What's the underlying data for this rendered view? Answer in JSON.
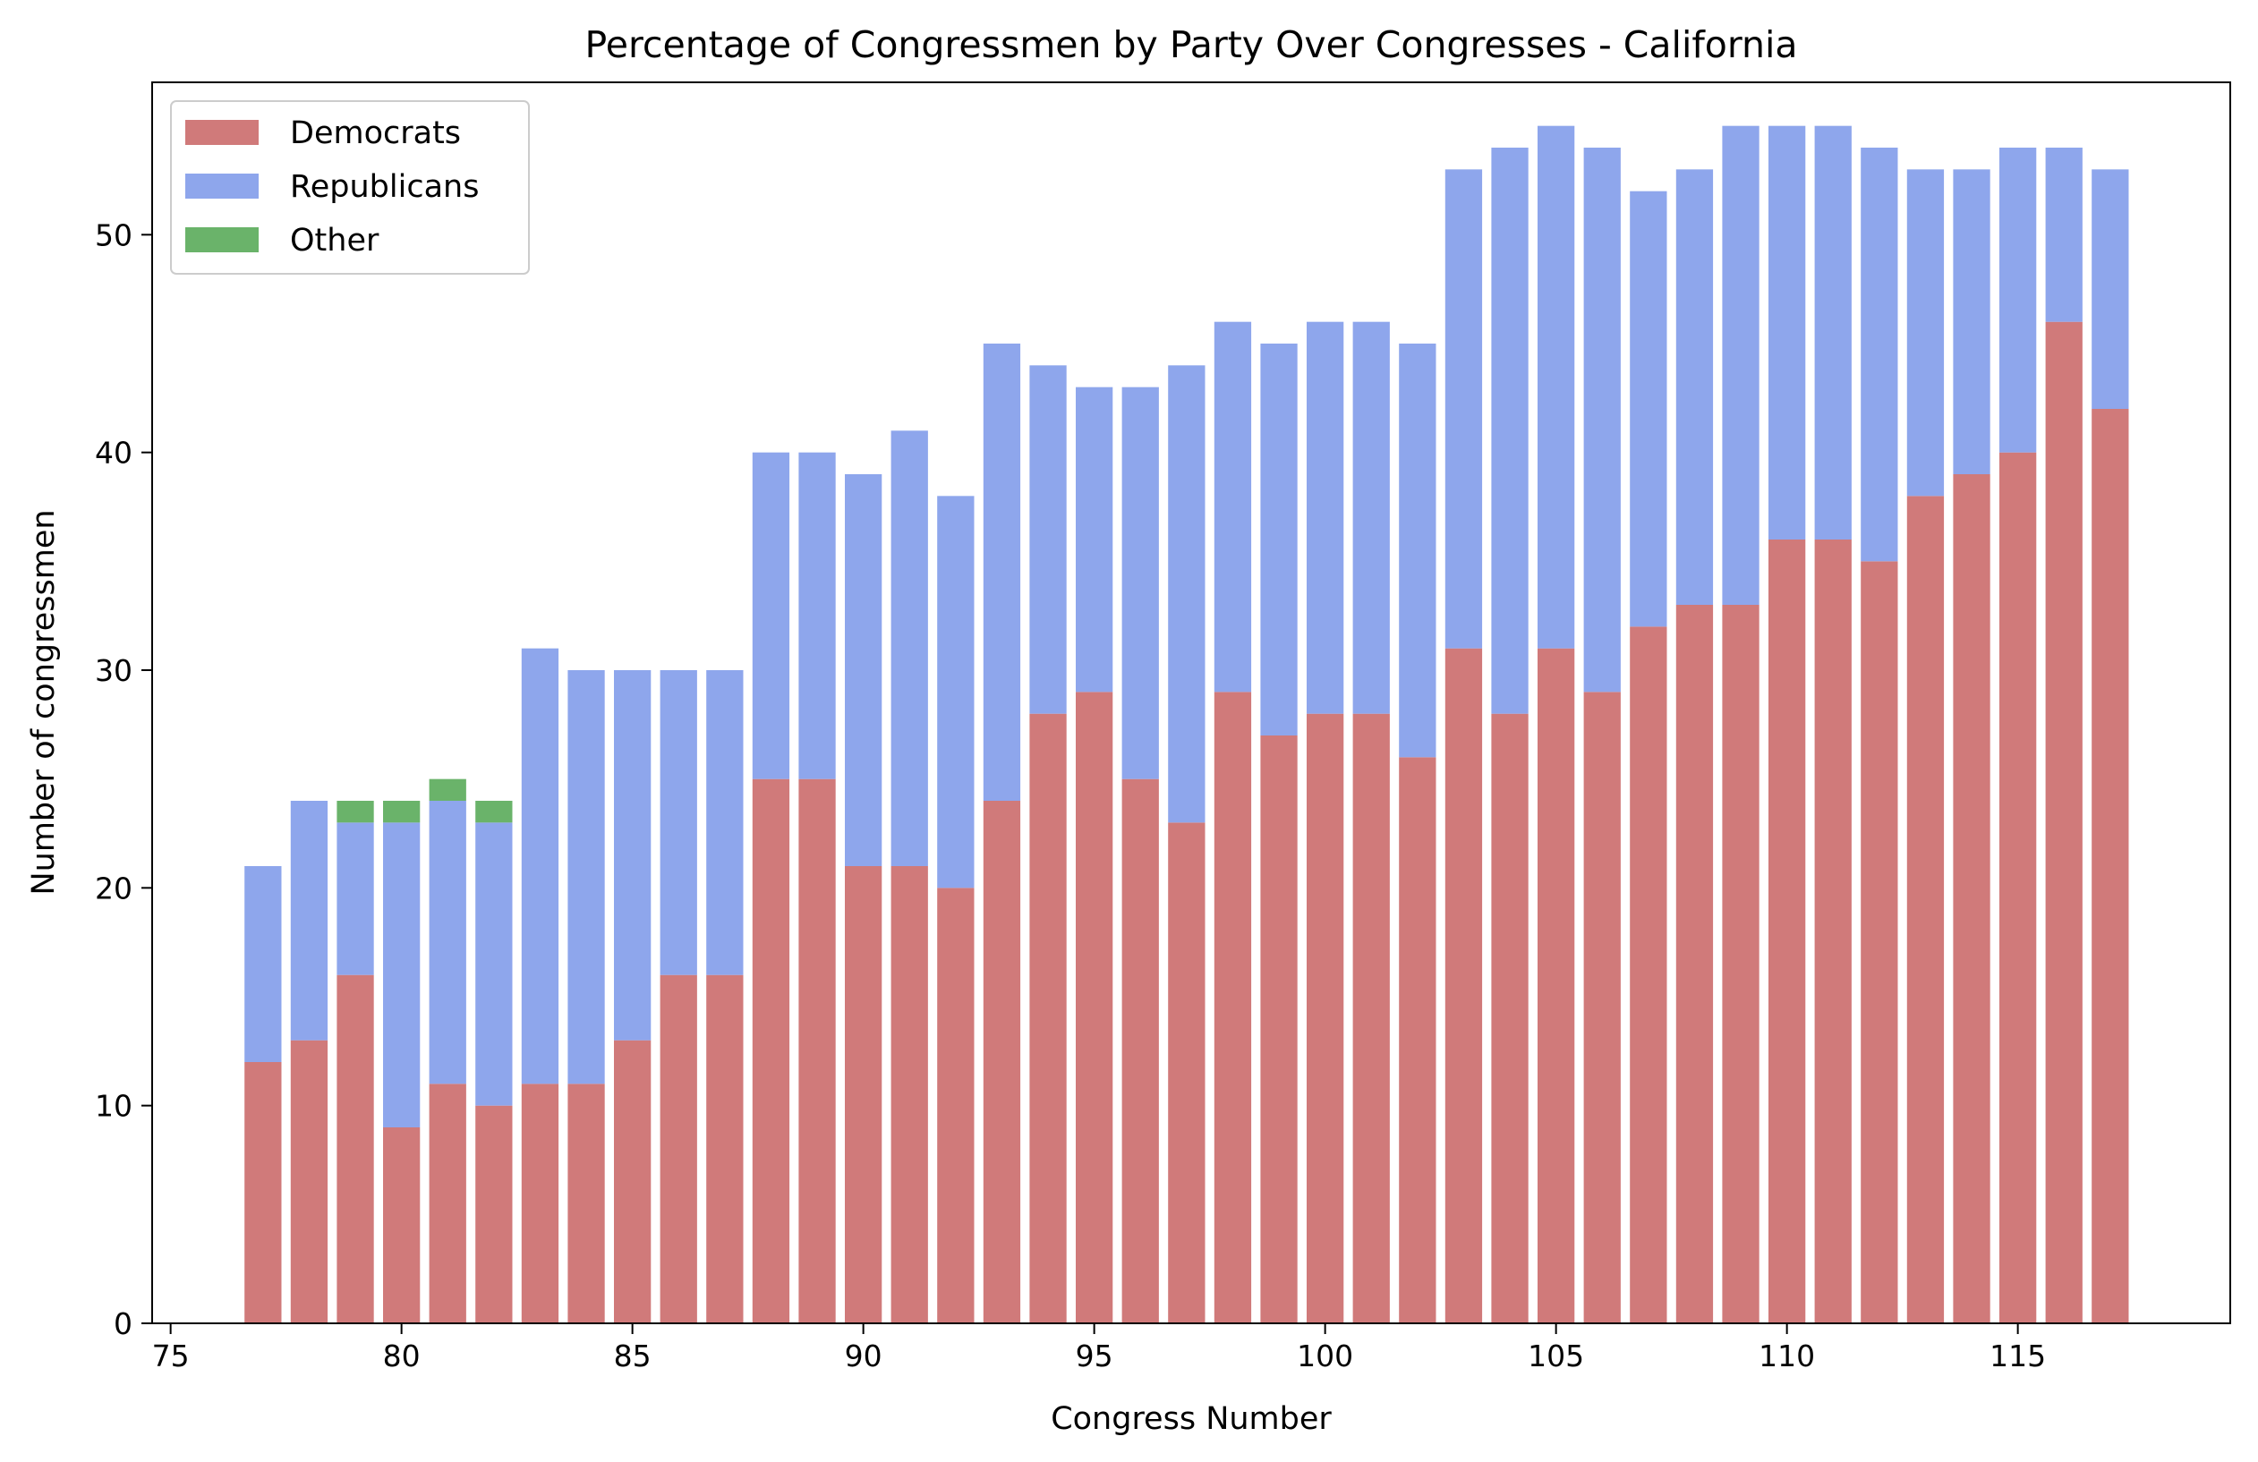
{
  "chart_data": {
    "type": "bar",
    "stacked": true,
    "title": "Percentage of Congressmen by Party Over Congresses - California",
    "xlabel": "Congress Number",
    "ylabel": "Number of congressmen",
    "xlim": [
      74.6,
      119.6
    ],
    "ylim": [
      0,
      57
    ],
    "xticks": [
      75,
      80,
      85,
      90,
      95,
      100,
      105,
      110,
      115
    ],
    "yticks": [
      0,
      10,
      20,
      30,
      40,
      50
    ],
    "grid": false,
    "legend": "top-left",
    "x": [
      77,
      78,
      79,
      80,
      81,
      82,
      83,
      84,
      85,
      86,
      87,
      88,
      89,
      90,
      91,
      92,
      93,
      94,
      95,
      96,
      97,
      98,
      99,
      100,
      101,
      102,
      103,
      104,
      105,
      106,
      107,
      108,
      109,
      110,
      111,
      112,
      113,
      114,
      115,
      116,
      117
    ],
    "series": [
      {
        "name": "Democrats",
        "color": "#d07a7a",
        "values": [
          12,
          13,
          16,
          9,
          11,
          10,
          11,
          11,
          13,
          16,
          16,
          25,
          25,
          21,
          21,
          20,
          24,
          28,
          29,
          25,
          23,
          29,
          27,
          28,
          28,
          26,
          31,
          28,
          31,
          29,
          32,
          33,
          33,
          36,
          36,
          35,
          38,
          39,
          40,
          46,
          42
        ]
      },
      {
        "name": "Republicans",
        "color": "#8ea6ec",
        "values": [
          9,
          11,
          7,
          14,
          13,
          13,
          20,
          19,
          17,
          14,
          14,
          15,
          15,
          18,
          20,
          18,
          21,
          16,
          14,
          18,
          21,
          17,
          18,
          18,
          18,
          19,
          22,
          26,
          24,
          25,
          20,
          20,
          22,
          19,
          19,
          19,
          15,
          14,
          14,
          8,
          11
        ]
      },
      {
        "name": "Other",
        "color": "#6ab36a",
        "values": [
          0,
          0,
          1,
          1,
          1,
          1,
          0,
          0,
          0,
          0,
          0,
          0,
          0,
          0,
          0,
          0,
          0,
          0,
          0,
          0,
          0,
          0,
          0,
          0,
          0,
          0,
          0,
          0,
          0,
          0,
          0,
          0,
          0,
          0,
          0,
          0,
          0,
          0,
          0,
          0,
          0
        ]
      }
    ]
  }
}
